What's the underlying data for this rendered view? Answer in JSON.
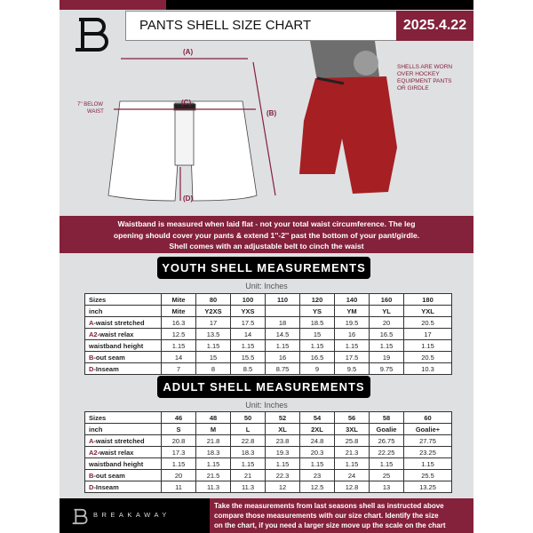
{
  "header": {
    "title": "PANTS SHELL SIZE CHART",
    "date": "2025.4.22"
  },
  "diagram": {
    "label_a": "(A)",
    "label_b": "(B)",
    "label_c": "(C)",
    "label_d": "(D)",
    "below_waist_line1": "7'' BELOW",
    "below_waist_line2": "WAIST",
    "note_lines": [
      "SHELLS ARE WORN",
      "OVER HOCKEY",
      "EQUIPMENT PANTS",
      "OR GIRDLE"
    ]
  },
  "banner": {
    "lines": [
      "Waistband is measured when laid flat - not your total waist circumference. The leg",
      "opening should cover your pants & extend 1''-2'' past the bottom of your pant/girdle.",
      "Shell comes with an adjustable belt to cinch the waist"
    ]
  },
  "youth": {
    "title": "YOUTH SHELL MEASUREMENTS",
    "unit": "Unit: Inches",
    "rows": [
      {
        "prefix": "",
        "label": "Sizes",
        "values": [
          "Mite",
          "80",
          "100",
          "110",
          "120",
          "140",
          "160",
          "180"
        ]
      },
      {
        "prefix": "",
        "label": "inch",
        "values": [
          "Mite",
          "Y2XS",
          "YXS",
          "",
          "YS",
          "YM",
          "YL",
          "YXL"
        ]
      },
      {
        "prefix": "A",
        "label": "-waist stretched",
        "values": [
          "16.3",
          "17",
          "17.5",
          "18",
          "18.5",
          "19.5",
          "20",
          "20.5"
        ]
      },
      {
        "prefix": "A2",
        "label": "-waist relax",
        "values": [
          "12.5",
          "13.5",
          "14",
          "14.5",
          "15",
          "16",
          "16.5",
          "17"
        ]
      },
      {
        "prefix": "",
        "label": "waistband height",
        "values": [
          "1.15",
          "1.15",
          "1.15",
          "1.15",
          "1.15",
          "1.15",
          "1.15",
          "1.15"
        ]
      },
      {
        "prefix": "B",
        "label": "-out seam",
        "values": [
          "14",
          "15",
          "15.5",
          "16",
          "16.5",
          "17.5",
          "19",
          "20.5"
        ]
      },
      {
        "prefix": "D",
        "label": "-Inseam",
        "values": [
          "7",
          "8",
          "8.5",
          "8.75",
          "9",
          "9.5",
          "9.75",
          "10.3"
        ]
      }
    ]
  },
  "adult": {
    "title": "ADULT SHELL MEASUREMENTS",
    "unit": "Unit: Inches",
    "rows": [
      {
        "prefix": "",
        "label": "Sizes",
        "values": [
          "46",
          "48",
          "50",
          "52",
          "54",
          "56",
          "58",
          "60"
        ]
      },
      {
        "prefix": "",
        "label": "inch",
        "values": [
          "S",
          "M",
          "L",
          "XL",
          "2XL",
          "3XL",
          "Goalie",
          "Goalie+"
        ]
      },
      {
        "prefix": "A",
        "label": "-waist stretched",
        "values": [
          "20.8",
          "21.8",
          "22.8",
          "23.8",
          "24.8",
          "25.8",
          "26.75",
          "27.75"
        ]
      },
      {
        "prefix": "A2",
        "label": "-waist relax",
        "values": [
          "17.3",
          "18.3",
          "18.3",
          "19.3",
          "20.3",
          "21.3",
          "22.25",
          "23.25"
        ]
      },
      {
        "prefix": "",
        "label": "waistband height",
        "values": [
          "1.15",
          "1.15",
          "1.15",
          "1.15",
          "1.15",
          "1.15",
          "1.15",
          "1.15"
        ]
      },
      {
        "prefix": "B",
        "label": "-out seam",
        "values": [
          "20",
          "21.5",
          "21",
          "22.3",
          "23",
          "24",
          "25",
          "25.5"
        ]
      },
      {
        "prefix": "D",
        "label": "-Inseam",
        "values": [
          "11",
          "11.3",
          "11.3",
          "12",
          "12.5",
          "12.8",
          "13",
          "13.25"
        ]
      }
    ]
  },
  "footer": {
    "brand": "BREAKAWAY",
    "lines": [
      "Take the measurements from last seasons shell as instructed above",
      "compare those measurements  with our size chart. Identify the size",
      "on the chart, if you need a larger size move up the scale on the chart"
    ]
  },
  "colors": {
    "accent": "#84213b",
    "background": "#dfe0e2"
  }
}
